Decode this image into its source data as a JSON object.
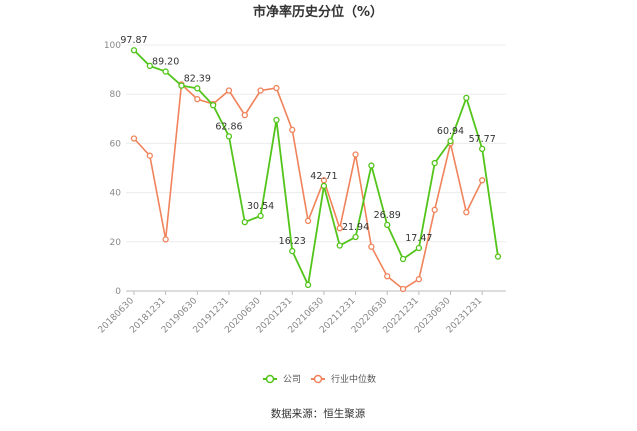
{
  "title": "市净率历史分位（%）",
  "source": "数据来源：恒生聚源",
  "legend": [
    {
      "name": "公司",
      "color": "#52c41a"
    },
    {
      "name": "行业中位数",
      "color": "#f0835b"
    }
  ],
  "chart_data": {
    "type": "line",
    "title": "市净率历史分位（%）",
    "xlabel": "",
    "ylabel": "",
    "ylim": [
      0,
      100
    ],
    "yticks": [
      0,
      20,
      40,
      60,
      80,
      100
    ],
    "grid": true,
    "legend_position": "bottom",
    "categories": [
      "20180630",
      "20180930",
      "20181231",
      "20190331",
      "20190630",
      "20190930",
      "20191231",
      "20200331",
      "20200630",
      "20200930",
      "20201231",
      "20210331",
      "20210630",
      "20210930",
      "20211231",
      "20220331",
      "20220630",
      "20220930",
      "20221231",
      "20230331",
      "20230630",
      "20230930",
      "20231231",
      "20240331"
    ],
    "tick_labels": [
      "20180630",
      "20181231",
      "20190630",
      "20191231",
      "20200630",
      "20201231",
      "20210630",
      "20211231",
      "20220630",
      "20221231",
      "20230630",
      "20231231"
    ],
    "series": [
      {
        "name": "公司",
        "color": "#52c41a",
        "values": [
          97.87,
          91.5,
          89.2,
          83.5,
          82.39,
          75.5,
          62.86,
          28.0,
          30.54,
          69.5,
          16.23,
          2.5,
          42.71,
          18.5,
          21.94,
          51.0,
          26.89,
          13.0,
          17.47,
          52.0,
          60.94,
          78.5,
          57.77,
          14.0
        ],
        "labels": {
          "0": "97.87",
          "2": "89.20",
          "4": "82.39",
          "6": "62.86",
          "8": "30.54",
          "10": "16.23",
          "12": "42.71",
          "14": "21.94",
          "16": "26.89",
          "18": "17.47",
          "20": "60.94",
          "22": "57.77"
        }
      },
      {
        "name": "行业中位数",
        "color": "#f0835b",
        "values": [
          62.0,
          55.0,
          21.0,
          84.0,
          78.0,
          76.0,
          81.5,
          71.5,
          81.5,
          82.5,
          65.5,
          28.5,
          45.0,
          25.5,
          55.5,
          18.0,
          6.0,
          0.8,
          4.8,
          33.0,
          60.0,
          32.0,
          45.0,
          null
        ]
      }
    ]
  }
}
